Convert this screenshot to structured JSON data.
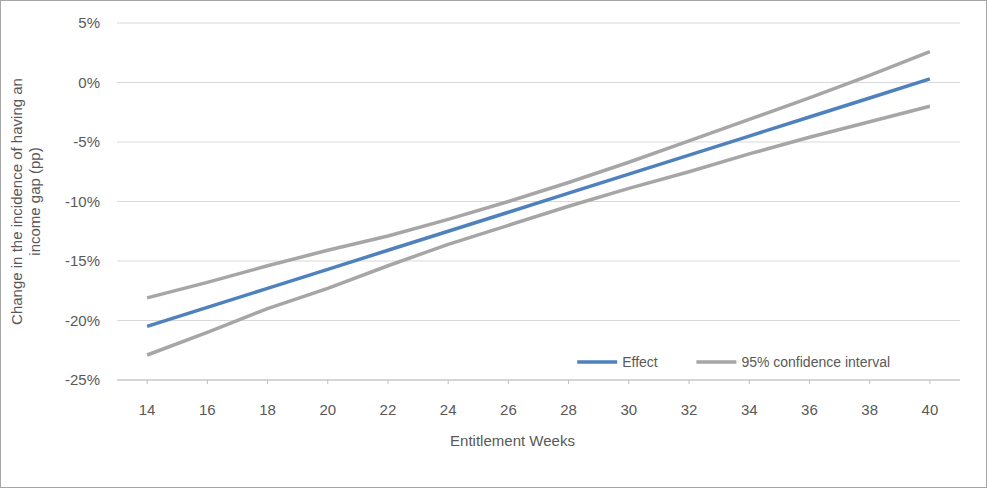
{
  "chart_data": {
    "type": "line",
    "x_label": "Entitlement Weeks",
    "y_label": "Change in the incidence of having an income gap (pp)",
    "x": [
      14,
      16,
      18,
      20,
      22,
      24,
      26,
      28,
      30,
      32,
      34,
      36,
      38,
      40
    ],
    "xlim": [
      13,
      41
    ],
    "xticks": [
      14,
      16,
      18,
      20,
      22,
      24,
      26,
      28,
      30,
      32,
      34,
      36,
      38,
      40
    ],
    "ylim": [
      -25,
      5
    ],
    "yticks": [
      {
        "value": -25,
        "label": "-25%"
      },
      {
        "value": -20,
        "label": "-20%"
      },
      {
        "value": -15,
        "label": "-15%"
      },
      {
        "value": -10,
        "label": "-10%"
      },
      {
        "value": -5,
        "label": "-5%"
      },
      {
        "value": 0,
        "label": "0%"
      },
      {
        "value": 5,
        "label": "5%"
      }
    ],
    "grid": true,
    "legend": "bottom-right",
    "series": [
      {
        "name": "Effect",
        "color": "#4f81bd",
        "values": [
          -20.5,
          -18.9,
          -17.3,
          -15.7,
          -14.1,
          -12.5,
          -10.9,
          -9.3,
          -7.7,
          -6.1,
          -4.5,
          -2.9,
          -1.3,
          0.3
        ]
      },
      {
        "name": "95% confidence interval",
        "color": "#a6a6a6",
        "lower": [
          -22.9,
          -21.0,
          -19.0,
          -17.3,
          -15.4,
          -13.6,
          -12.0,
          -10.4,
          -8.9,
          -7.5,
          -6.0,
          -4.6,
          -3.3,
          -2.0
        ],
        "upper": [
          -18.1,
          -16.8,
          -15.4,
          -14.1,
          -12.9,
          -11.5,
          -10.0,
          -8.4,
          -6.7,
          -4.9,
          -3.1,
          -1.3,
          0.6,
          2.6
        ]
      }
    ]
  }
}
